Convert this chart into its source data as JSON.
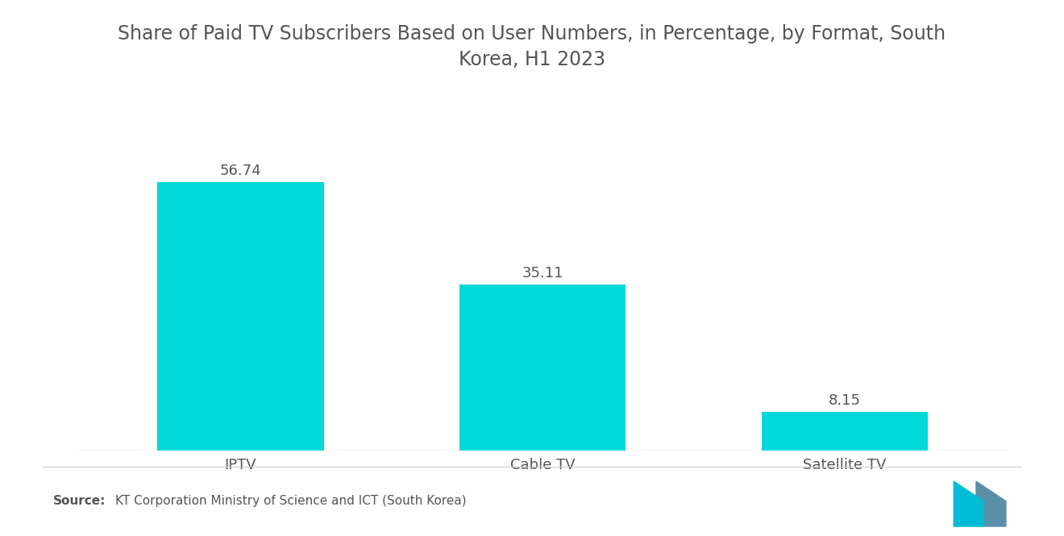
{
  "title": "Share of Paid TV Subscribers Based on User Numbers, in Percentage, by Format, South\nKorea, H1 2023",
  "categories": [
    "IPTV",
    "Cable TV",
    "Satellite TV"
  ],
  "values": [
    56.74,
    35.11,
    8.15
  ],
  "bar_color": "#00D9D9",
  "value_labels": [
    "56.74",
    "35.11",
    "8.15"
  ],
  "source_label_bold": "Source:",
  "source_label_rest": "KT Corporation Ministry of Science and ICT (South Korea)",
  "background_color": "#ffffff",
  "text_color": "#555555",
  "title_fontsize": 17,
  "label_fontsize": 13,
  "value_fontsize": 13,
  "source_fontsize": 11,
  "ylim": [
    0,
    68
  ],
  "bar_width": 0.55,
  "x_positions": [
    0,
    1,
    2
  ]
}
